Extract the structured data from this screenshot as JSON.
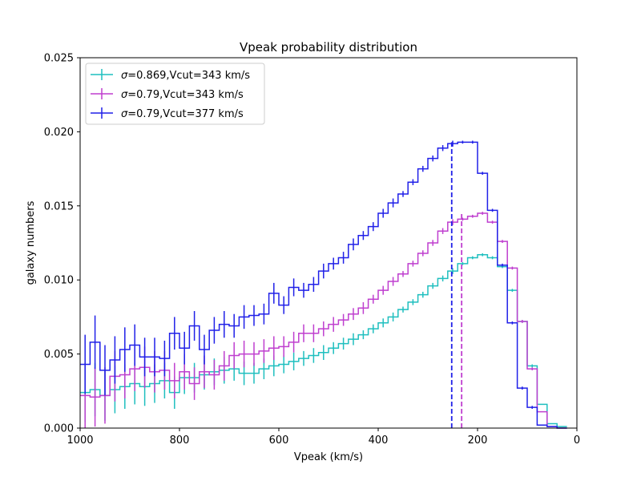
{
  "chart_data": {
    "type": "line",
    "title": "Vpeak probability distribution",
    "xlabel": "Vpeak (km/s)",
    "ylabel": "galaxy numbers",
    "xlim": [
      1000,
      0
    ],
    "ylim": [
      0,
      0.025
    ],
    "x_inverted": true,
    "xticks": [
      1000,
      800,
      600,
      400,
      200,
      0
    ],
    "yticks": [
      0.0,
      0.005,
      0.01,
      0.015,
      0.02,
      0.025
    ],
    "xtick_labels": [
      "1000",
      "800",
      "600",
      "400",
      "200",
      "0"
    ],
    "ytick_labels": [
      "0.000",
      "0.005",
      "0.010",
      "0.015",
      "0.020",
      "0.025"
    ],
    "grid": false,
    "legend_position": "top-left",
    "bin_edges": [
      1000,
      980,
      960,
      940,
      920,
      900,
      880,
      860,
      840,
      820,
      800,
      780,
      760,
      740,
      720,
      700,
      680,
      660,
      640,
      620,
      600,
      580,
      560,
      540,
      520,
      500,
      480,
      460,
      440,
      420,
      400,
      380,
      360,
      340,
      320,
      300,
      280,
      260,
      240,
      220,
      200,
      180,
      160,
      140,
      120,
      100,
      80,
      60,
      40,
      20
    ],
    "series": [
      {
        "name_prefix": "σ",
        "name_suffix": "=0.869,Vcut=343 km/s",
        "color": "#1fbfbf",
        "values": [
          0.0024,
          0.0026,
          0.0022,
          0.0026,
          0.0028,
          0.003,
          0.0028,
          0.003,
          0.0032,
          0.0024,
          0.0034,
          0.0034,
          0.0036,
          0.0038,
          0.0039,
          0.004,
          0.0037,
          0.0037,
          0.004,
          0.0042,
          0.0043,
          0.0045,
          0.0047,
          0.0049,
          0.0051,
          0.0054,
          0.0057,
          0.006,
          0.0063,
          0.0067,
          0.0071,
          0.0075,
          0.008,
          0.0085,
          0.009,
          0.0096,
          0.0101,
          0.0106,
          0.0111,
          0.0115,
          0.0117,
          0.0115,
          0.0109,
          0.0093,
          0.0072,
          0.0042,
          0.0016,
          0.0003,
          0.0001
        ],
        "errors": [
          0.002,
          0.0018,
          0.0017,
          0.0016,
          0.0015,
          0.0014,
          0.0013,
          0.0013,
          0.0012,
          0.0011,
          0.0011,
          0.001,
          0.001,
          0.0009,
          0.0009,
          0.0008,
          0.0008,
          0.0007,
          0.0007,
          0.0007,
          0.0006,
          0.0006,
          0.0005,
          0.0005,
          0.0005,
          0.0004,
          0.0004,
          0.0004,
          0.0003,
          0.0003,
          0.0003,
          0.0003,
          0.0002,
          0.0002,
          0.0002,
          0.0002,
          0.0002,
          0.0002,
          0.0001,
          0.0001,
          0.0001,
          0.0001,
          0.0001,
          0.0001,
          0.0001,
          0.0001,
          0.0,
          0.0,
          0.0
        ]
      },
      {
        "name_prefix": "σ",
        "name_suffix": "=0.79,Vcut=343 km/s",
        "color": "#bf3fcf",
        "values": [
          0.0022,
          0.0021,
          0.0022,
          0.0035,
          0.0036,
          0.004,
          0.0041,
          0.0038,
          0.0039,
          0.0032,
          0.0038,
          0.003,
          0.0038,
          0.0036,
          0.0042,
          0.0049,
          0.005,
          0.005,
          0.0052,
          0.0054,
          0.0055,
          0.0058,
          0.0064,
          0.0064,
          0.0067,
          0.007,
          0.0073,
          0.0077,
          0.0081,
          0.0087,
          0.0093,
          0.0099,
          0.0104,
          0.0111,
          0.0118,
          0.0125,
          0.0133,
          0.0139,
          0.0141,
          0.0143,
          0.0145,
          0.0139,
          0.0126,
          0.0108,
          0.0072,
          0.004,
          0.0011,
          0.0001,
          0.0
        ],
        "errors": [
          0.0022,
          0.002,
          0.0019,
          0.0017,
          0.0016,
          0.0015,
          0.0014,
          0.0014,
          0.0013,
          0.0012,
          0.0012,
          0.0011,
          0.0011,
          0.001,
          0.001,
          0.0009,
          0.0009,
          0.0008,
          0.0008,
          0.0008,
          0.0007,
          0.0007,
          0.0006,
          0.0006,
          0.0005,
          0.0005,
          0.0004,
          0.0004,
          0.0004,
          0.0003,
          0.0003,
          0.0003,
          0.0002,
          0.0002,
          0.0002,
          0.0002,
          0.0002,
          0.0002,
          0.0001,
          0.0001,
          0.0001,
          0.0001,
          0.0001,
          0.0001,
          0.0001,
          0.0001,
          0.0,
          0.0,
          0.0
        ]
      },
      {
        "name_prefix": "σ",
        "name_suffix": "=0.79,Vcut=377 km/s",
        "color": "#2020e8",
        "values": [
          0.0043,
          0.0058,
          0.0039,
          0.0046,
          0.0053,
          0.0056,
          0.0048,
          0.0048,
          0.0047,
          0.0064,
          0.0054,
          0.0069,
          0.0053,
          0.0066,
          0.007,
          0.0069,
          0.0075,
          0.0076,
          0.0077,
          0.0091,
          0.0083,
          0.0095,
          0.0093,
          0.0097,
          0.0106,
          0.0111,
          0.0115,
          0.0124,
          0.013,
          0.0136,
          0.0145,
          0.0152,
          0.0158,
          0.0166,
          0.0175,
          0.0182,
          0.0189,
          0.0192,
          0.0193,
          0.0193,
          0.0172,
          0.0147,
          0.011,
          0.0071,
          0.0027,
          0.0014,
          0.0002,
          0.0001,
          0.0
        ],
        "errors": [
          0.002,
          0.0018,
          0.0017,
          0.0016,
          0.0015,
          0.0014,
          0.0013,
          0.0013,
          0.0012,
          0.0011,
          0.0011,
          0.001,
          0.001,
          0.0009,
          0.0009,
          0.0008,
          0.0008,
          0.0007,
          0.0007,
          0.0007,
          0.0006,
          0.0006,
          0.0005,
          0.0005,
          0.0005,
          0.0004,
          0.0004,
          0.0004,
          0.0003,
          0.0003,
          0.0003,
          0.0003,
          0.0002,
          0.0002,
          0.0002,
          0.0002,
          0.0002,
          0.0002,
          0.0001,
          0.0001,
          0.0001,
          0.0001,
          0.0001,
          0.0001,
          0.0001,
          0.0001,
          0.0,
          0.0,
          0.0
        ]
      }
    ],
    "vertical_lines": [
      {
        "x": 252,
        "y_max": 0.0193,
        "color": "#2020e8",
        "style": "dashed"
      },
      {
        "x": 232,
        "y_max": 0.0145,
        "color": "#bf3fcf",
        "style": "dashed"
      }
    ]
  }
}
